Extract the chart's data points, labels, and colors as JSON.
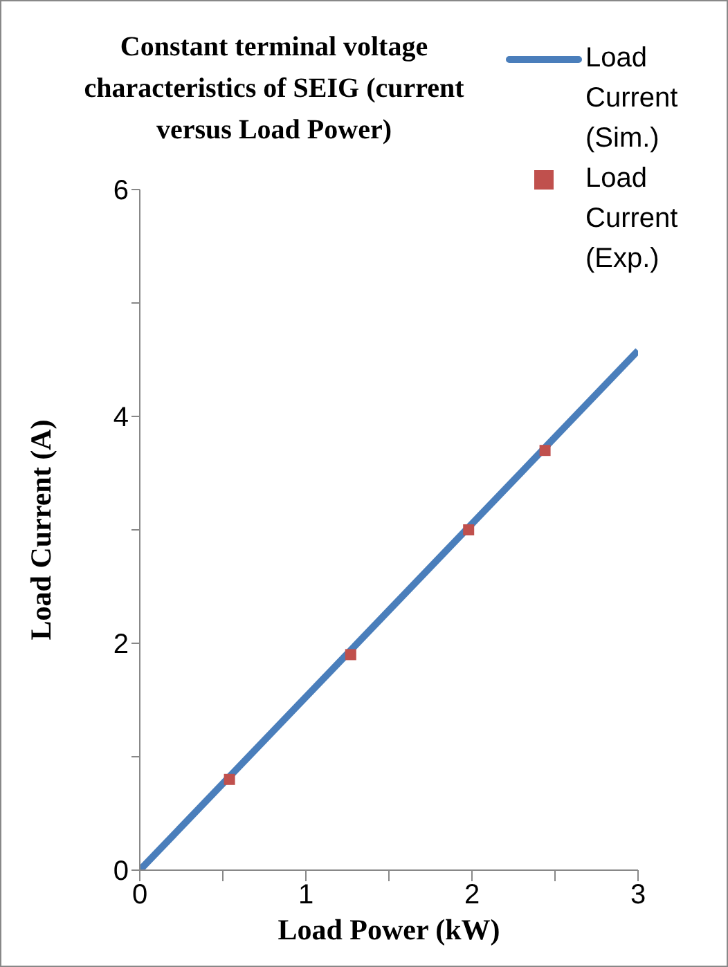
{
  "chart_data": {
    "type": "line",
    "title": "Constant terminal voltage characteristics of SEIG (current versus Load Power)",
    "xlabel": "Load Power (kW)",
    "ylabel": "Load Current (A)",
    "series": [
      {
        "name": "Load Current (Sim.)",
        "color": "#4a7ebb",
        "x": [
          0,
          3
        ],
        "values": [
          0,
          4.58
        ],
        "marker": "none",
        "line_style": "solid"
      },
      {
        "name": "Load Current (Exp.)",
        "type": "scatter",
        "color": "#c0504d",
        "x": [
          0.54,
          1.27,
          1.98,
          2.44
        ],
        "values": [
          0.8,
          1.9,
          3.0,
          3.7
        ],
        "marker": "square"
      }
    ],
    "xlim": [
      0,
      3
    ],
    "xticks": [
      0,
      {
        "value": 0.5,
        "label": null
      },
      1,
      {
        "value": 1.5,
        "label": null
      },
      2,
      {
        "value": 2.5,
        "label": null
      },
      3
    ],
    "ylim": [
      0,
      6
    ],
    "yticks": [
      0,
      {
        "value": 1,
        "label": null
      },
      2,
      {
        "value": 3,
        "label": null
      },
      4,
      {
        "value": 5,
        "label": null
      },
      6
    ],
    "grid": false,
    "legend": "top right"
  }
}
